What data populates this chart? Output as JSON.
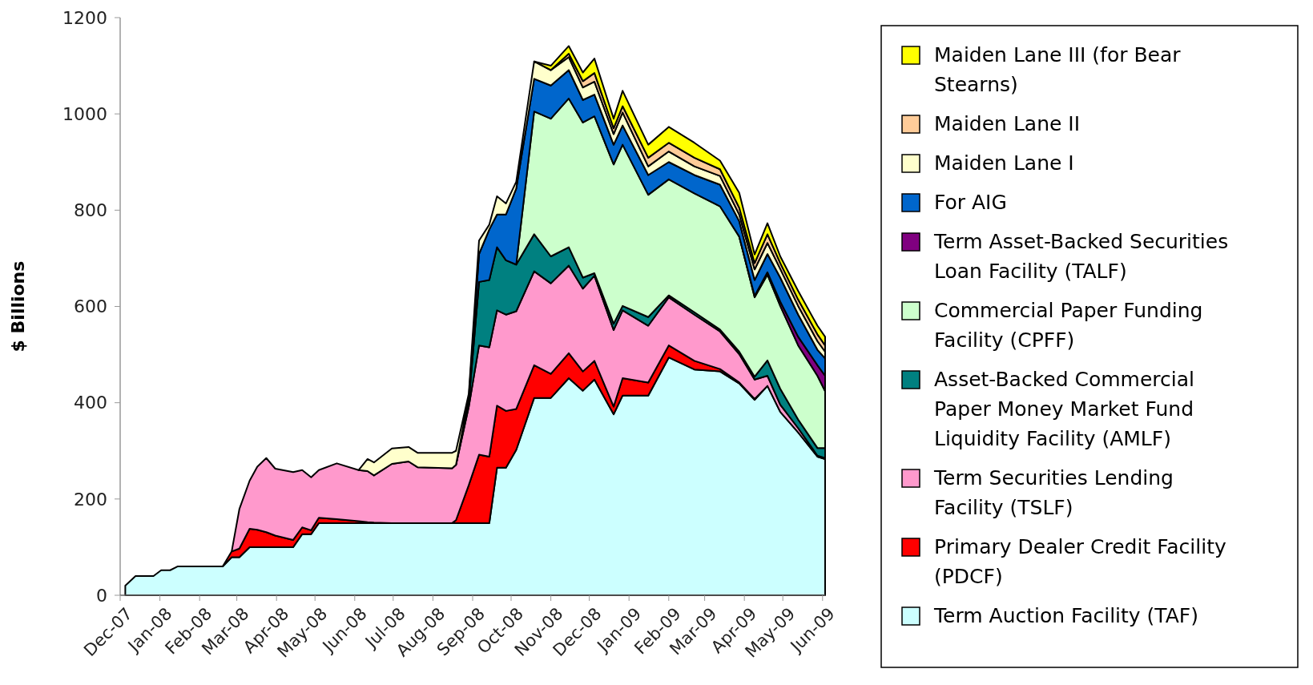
{
  "chart_data": {
    "type": "area",
    "stacked": true,
    "ylabel": "$ Billions",
    "legend": "right",
    "x": [
      "2007-12-19",
      "2007-12-27",
      "2008-01-10",
      "2008-01-16",
      "2008-01-23",
      "2008-01-29",
      "2008-03-04",
      "2008-03-11",
      "2008-03-17",
      "2008-03-25",
      "2008-03-31",
      "2008-04-07",
      "2008-04-14",
      "2008-04-28",
      "2008-05-05",
      "2008-05-12",
      "2008-05-18",
      "2008-06-01",
      "2008-06-18",
      "2008-06-25",
      "2008-06-30",
      "2008-07-14",
      "2008-07-27",
      "2008-08-03",
      "2008-08-30",
      "2008-09-02",
      "2008-09-12",
      "2008-09-20",
      "2008-09-28",
      "2008-10-04",
      "2008-10-11",
      "2008-10-19",
      "2008-11-02",
      "2008-11-15",
      "2008-11-29",
      "2008-12-10",
      "2008-12-19",
      "2009-01-03",
      "2009-01-10",
      "2009-01-30",
      "2009-02-15",
      "2009-03-07",
      "2009-03-27",
      "2009-04-11",
      "2009-04-23",
      "2009-05-03",
      "2009-05-13",
      "2009-05-27",
      "2009-06-11",
      "2009-06-17"
    ],
    "series": [
      {
        "name": "Term Auction Facility (TAF)",
        "color": "#ccffff",
        "values": [
          20,
          40,
          40,
          52,
          52,
          60,
          60,
          79,
          79,
          100,
          100,
          100,
          100,
          100,
          127,
          127,
          150,
          150,
          150,
          150,
          150,
          150,
          150,
          150,
          150,
          150,
          150,
          150,
          150,
          265,
          265,
          302,
          410,
          410,
          451,
          425,
          448,
          376,
          415,
          415,
          494,
          469,
          465,
          440,
          406,
          435,
          381,
          338,
          288,
          283
        ]
      },
      {
        "name": "Primary Dealer Credit Facility (PDCF)",
        "color": "#ff0000",
        "values": [
          null,
          null,
          null,
          null,
          null,
          null,
          0,
          12,
          18,
          38,
          36,
          31,
          24,
          15,
          14,
          8,
          11,
          8,
          4,
          2,
          1,
          0,
          0,
          0,
          0,
          6,
          79,
          142,
          138,
          129,
          118,
          85,
          68,
          50,
          52,
          40,
          39,
          16,
          36,
          27,
          25,
          18,
          5,
          2,
          2,
          0,
          null,
          null,
          null,
          null
        ]
      },
      {
        "name": "Term Securities Lending Facility (TSLF)",
        "color": "#ff99cc",
        "values": [
          null,
          null,
          null,
          null,
          null,
          null,
          null,
          0,
          82,
          100,
          131,
          154,
          139,
          141,
          119,
          110,
          99,
          116,
          106,
          106,
          98,
          123,
          128,
          116,
          114,
          115,
          163,
          227,
          227,
          198,
          200,
          203,
          195,
          188,
          182,
          172,
          177,
          159,
          141,
          118,
          100,
          96,
          78,
          59,
          40,
          21,
          15,
          9,
          2,
          2
        ]
      },
      {
        "name": "Asset-Backed Commercial Paper Money Market Fund Liquidity Facility (AMLF)",
        "color": "#008080",
        "values": [
          null,
          null,
          null,
          null,
          null,
          null,
          null,
          null,
          null,
          null,
          null,
          null,
          null,
          null,
          null,
          null,
          null,
          null,
          null,
          null,
          null,
          null,
          null,
          null,
          null,
          0,
          10,
          132,
          140,
          131,
          113,
          97,
          77,
          56,
          38,
          23,
          5,
          13,
          9,
          18,
          4,
          5,
          4,
          5,
          6,
          32,
          33,
          18,
          16,
          21
        ]
      },
      {
        "name": "Commercial Paper Funding Facility (CPFF)",
        "color": "#ccffcc",
        "values": [
          null,
          null,
          null,
          null,
          null,
          null,
          null,
          null,
          null,
          null,
          null,
          null,
          null,
          null,
          null,
          null,
          null,
          null,
          null,
          null,
          null,
          null,
          null,
          null,
          null,
          null,
          null,
          null,
          null,
          null,
          null,
          0,
          255,
          286,
          309,
          322,
          326,
          331,
          335,
          254,
          241,
          247,
          256,
          239,
          165,
          178,
          172,
          154,
          150,
          118
        ]
      },
      {
        "name": "Term Asset-Backed Securities Loan Facility (TALF)",
        "color": "#800080",
        "values": [
          null,
          null,
          null,
          null,
          null,
          null,
          null,
          null,
          null,
          null,
          null,
          null,
          null,
          null,
          null,
          null,
          null,
          null,
          null,
          null,
          null,
          null,
          null,
          null,
          null,
          null,
          null,
          null,
          null,
          null,
          null,
          null,
          null,
          null,
          null,
          null,
          null,
          null,
          null,
          null,
          null,
          null,
          null,
          0,
          3,
          5,
          9,
          18,
          22,
          32
        ]
      },
      {
        "name": "For AIG",
        "color": "#0066cc",
        "values": [
          null,
          null,
          null,
          null,
          null,
          null,
          null,
          null,
          null,
          null,
          null,
          null,
          null,
          null,
          null,
          null,
          null,
          null,
          null,
          null,
          null,
          null,
          null,
          null,
          null,
          0,
          10,
          58,
          105,
          68,
          95,
          158,
          68,
          69,
          59,
          47,
          45,
          41,
          40,
          41,
          36,
          38,
          45,
          32,
          33,
          38,
          50,
          46,
          32,
          36
        ]
      },
      {
        "name": "Maiden Lane I",
        "color": "#ffffcc",
        "values": [
          null,
          null,
          null,
          null,
          null,
          null,
          null,
          null,
          null,
          null,
          null,
          null,
          null,
          null,
          null,
          null,
          null,
          null,
          0,
          25,
          27,
          32,
          30,
          30,
          32,
          29,
          7,
          28,
          10,
          38,
          23,
          14,
          36,
          32,
          27,
          26,
          27,
          22,
          27,
          18,
          22,
          18,
          18,
          14,
          22,
          23,
          18,
          18,
          18,
          14
        ]
      },
      {
        "name": "Maiden Lane II",
        "color": "#ffcc99",
        "values": [
          null,
          null,
          null,
          null,
          null,
          null,
          null,
          null,
          null,
          null,
          null,
          null,
          null,
          null,
          null,
          null,
          null,
          null,
          null,
          null,
          null,
          null,
          null,
          null,
          null,
          null,
          null,
          null,
          null,
          null,
          null,
          null,
          null,
          0,
          7,
          13,
          18,
          12,
          13,
          18,
          18,
          18,
          14,
          14,
          13,
          18,
          12,
          13,
          14,
          13
        ]
      },
      {
        "name": "Maiden Lane III (for Bear Stearns)",
        "color": "#ffff00",
        "values": [
          null,
          null,
          null,
          null,
          null,
          null,
          null,
          null,
          null,
          null,
          null,
          null,
          null,
          null,
          null,
          null,
          null,
          null,
          null,
          null,
          null,
          null,
          null,
          null,
          null,
          null,
          null,
          null,
          null,
          null,
          null,
          null,
          0,
          9,
          16,
          18,
          30,
          20,
          32,
          27,
          33,
          31,
          18,
          31,
          18,
          23,
          14,
          18,
          18,
          18
        ]
      }
    ],
    "ylim": [
      0,
      1200
    ],
    "yticks": [
      0,
      200,
      400,
      600,
      800,
      1000,
      1200
    ],
    "xlim": [
      "2007-12-15",
      "2009-06-17"
    ],
    "xticks": [
      {
        "value": "2007-12-15",
        "label": "Dec-07"
      },
      {
        "value": "2008-01-15",
        "label": "Jan-08"
      },
      {
        "value": "2008-02-15",
        "label": "Feb-08"
      },
      {
        "value": "2008-03-15",
        "label": "Mar-08"
      },
      {
        "value": "2008-04-15",
        "label": "Apr-08"
      },
      {
        "value": "2008-05-15",
        "label": "May-08"
      },
      {
        "value": "2008-06-15",
        "label": "Jun-08"
      },
      {
        "value": "2008-07-15",
        "label": "Jul-08"
      },
      {
        "value": "2008-08-15",
        "label": "Aug-08"
      },
      {
        "value": "2008-09-15",
        "label": "Sep-08"
      },
      {
        "value": "2008-10-15",
        "label": "Oct-08"
      },
      {
        "value": "2008-11-15",
        "label": "Nov-08"
      },
      {
        "value": "2008-12-15",
        "label": "Dec-08"
      },
      {
        "value": "2009-01-15",
        "label": "Jan-09"
      },
      {
        "value": "2009-02-15",
        "label": "Feb-09"
      },
      {
        "value": "2009-03-15",
        "label": "Mar-09"
      },
      {
        "value": "2009-04-15",
        "label": "Apr-09"
      },
      {
        "value": "2009-05-15",
        "label": "May-09"
      },
      {
        "value": "2009-06-15",
        "label": "Jun-09"
      }
    ]
  }
}
